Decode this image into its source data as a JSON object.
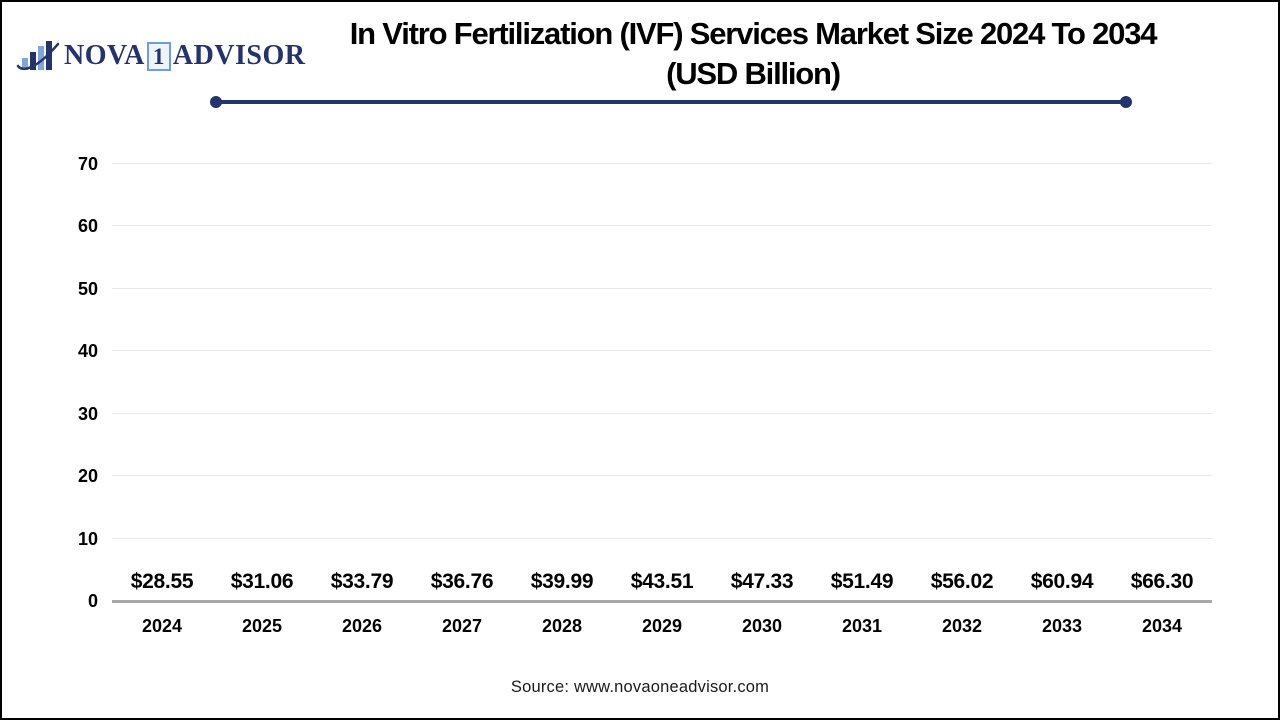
{
  "brand": {
    "name_left": "NOVA",
    "name_boxed": "1",
    "name_right": "ADVISOR"
  },
  "title": {
    "line1": "In Vitro Fertilization (IVF) Services Market Size 2024 To 2034",
    "line2": "(USD Billion)"
  },
  "source": "Source: www.novaoneadvisor.com",
  "colors": {
    "navy_accent": "#25336b",
    "bar_gradient_top": "#0fc4f0",
    "bar_gradient_mid": "#0a77b2",
    "bar_gradient_bottom": "#0c3a7a",
    "gridline": "#e9e9e9",
    "baseline": "#a8a8a8"
  },
  "chart_data": {
    "type": "bar",
    "title": "In Vitro Fertilization (IVF) Services Market Size 2024 To 2034 (USD Billion)",
    "xlabel": "",
    "ylabel": "",
    "categories": [
      "2024",
      "2025",
      "2026",
      "2027",
      "2028",
      "2029",
      "2030",
      "2031",
      "2032",
      "2033",
      "2034"
    ],
    "values": [
      28.55,
      31.06,
      33.79,
      36.76,
      39.99,
      43.51,
      47.33,
      51.49,
      56.02,
      60.94,
      66.3
    ],
    "value_labels": [
      "$28.55",
      "$31.06",
      "$33.79",
      "$36.76",
      "$39.99",
      "$43.51",
      "$47.33",
      "$51.49",
      "$56.02",
      "$60.94",
      "$66.30"
    ],
    "ylim": [
      0,
      70
    ],
    "ytick_step": 10,
    "yticks": [
      0,
      10,
      20,
      30,
      40,
      50,
      60,
      70
    ],
    "grid": true,
    "legend": "none"
  }
}
